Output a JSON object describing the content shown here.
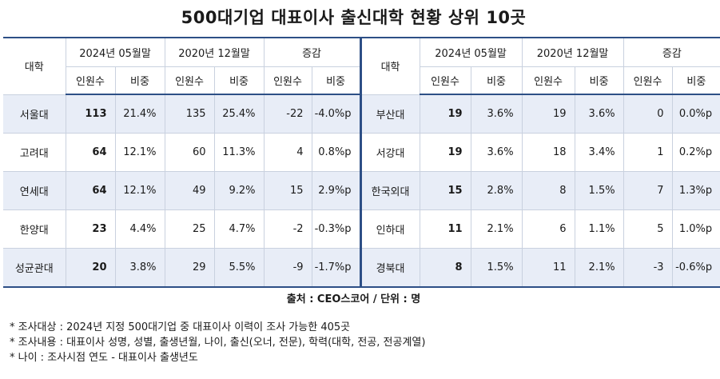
{
  "title": "500대기업 대표이사 출신대학 현황 상위 10곳",
  "headers": {
    "university": "대학",
    "period_2024": "2024년 05월말",
    "period_2020": "2020년 12월말",
    "change": "증감",
    "count": "인원수",
    "ratio": "비중"
  },
  "left_rows": [
    {
      "university": "서울대",
      "c2024": "113",
      "r2024": "21.4%",
      "c2020": "135",
      "r2020": "25.4%",
      "dc": "-22",
      "dr": "-4.0%p"
    },
    {
      "university": "고려대",
      "c2024": "64",
      "r2024": "12.1%",
      "c2020": "60",
      "r2020": "11.3%",
      "dc": "4",
      "dr": "0.8%p"
    },
    {
      "university": "연세대",
      "c2024": "64",
      "r2024": "12.1%",
      "c2020": "49",
      "r2020": "9.2%",
      "dc": "15",
      "dr": "2.9%p"
    },
    {
      "university": "한양대",
      "c2024": "23",
      "r2024": "4.4%",
      "c2020": "25",
      "r2020": "4.7%",
      "dc": "-2",
      "dr": "-0.3%p"
    },
    {
      "university": "성균관대",
      "c2024": "20",
      "r2024": "3.8%",
      "c2020": "29",
      "r2020": "5.5%",
      "dc": "-9",
      "dr": "-1.7%p"
    }
  ],
  "right_rows": [
    {
      "university": "부산대",
      "c2024": "19",
      "r2024": "3.6%",
      "c2020": "19",
      "r2020": "3.6%",
      "dc": "0",
      "dr": "0.0%p"
    },
    {
      "university": "서강대",
      "c2024": "19",
      "r2024": "3.6%",
      "c2020": "18",
      "r2020": "3.4%",
      "dc": "1",
      "dr": "0.2%p"
    },
    {
      "university": "한국외대",
      "c2024": "15",
      "r2024": "2.8%",
      "c2020": "8",
      "r2020": "1.5%",
      "dc": "7",
      "dr": "1.3%p"
    },
    {
      "university": "인하대",
      "c2024": "11",
      "r2024": "2.1%",
      "c2020": "6",
      "r2020": "1.1%",
      "dc": "5",
      "dr": "1.0%p"
    },
    {
      "university": "경북대",
      "c2024": "8",
      "r2024": "1.5%",
      "c2020": "11",
      "r2020": "2.1%",
      "dc": "-3",
      "dr": "-0.6%p"
    }
  ],
  "source": "출처 : CEO스코어 / 단위 : 명",
  "notes": [
    "* 조사대상 : 2024년 지정 500대기업 중 대표이사 이력이 조사 가능한 405곳",
    "* 조사내용 : 대표이사 성명, 성별, 출생년월, 나이, 출신(오너, 전문), 학력(대학, 전공, 전공계열)",
    "* 나이 : 조사시점 연도 - 대표이사 출생년도"
  ],
  "colors": {
    "border": "#2d4f86",
    "row_shade": "#e8edf7"
  }
}
